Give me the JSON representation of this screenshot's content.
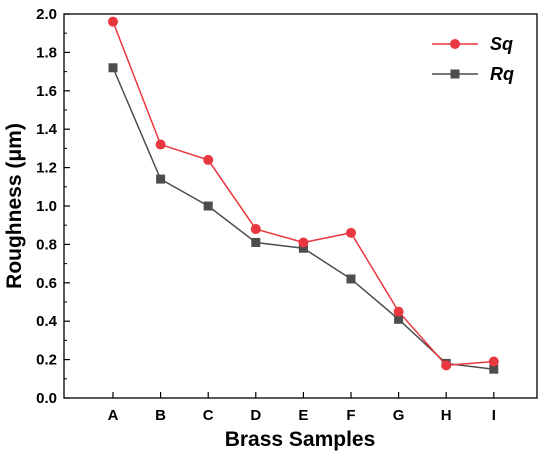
{
  "chart_data": {
    "type": "line",
    "categories": [
      "A",
      "B",
      "C",
      "D",
      "E",
      "F",
      "G",
      "H",
      "I"
    ],
    "series": [
      {
        "name": "Sq",
        "color": "#e8373e",
        "marker": "circle",
        "values": [
          1.96,
          1.32,
          1.24,
          0.88,
          0.81,
          0.86,
          0.45,
          0.17,
          0.19
        ]
      },
      {
        "name": "Rq",
        "color": "#4d4d4d",
        "marker": "square",
        "values": [
          1.72,
          1.14,
          1.0,
          0.81,
          0.78,
          0.62,
          0.41,
          0.18,
          0.15
        ]
      }
    ],
    "xlabel": "Brass Samples",
    "ylabel": "Roughness (μm)",
    "ylim": [
      0.0,
      2.0
    ],
    "yticks": [
      "0.0",
      "0.2",
      "0.4",
      "0.6",
      "0.8",
      "1.0",
      "1.2",
      "1.4",
      "1.6",
      "1.8",
      "2.0"
    ],
    "legend_position": "top-right",
    "grid": false
  }
}
